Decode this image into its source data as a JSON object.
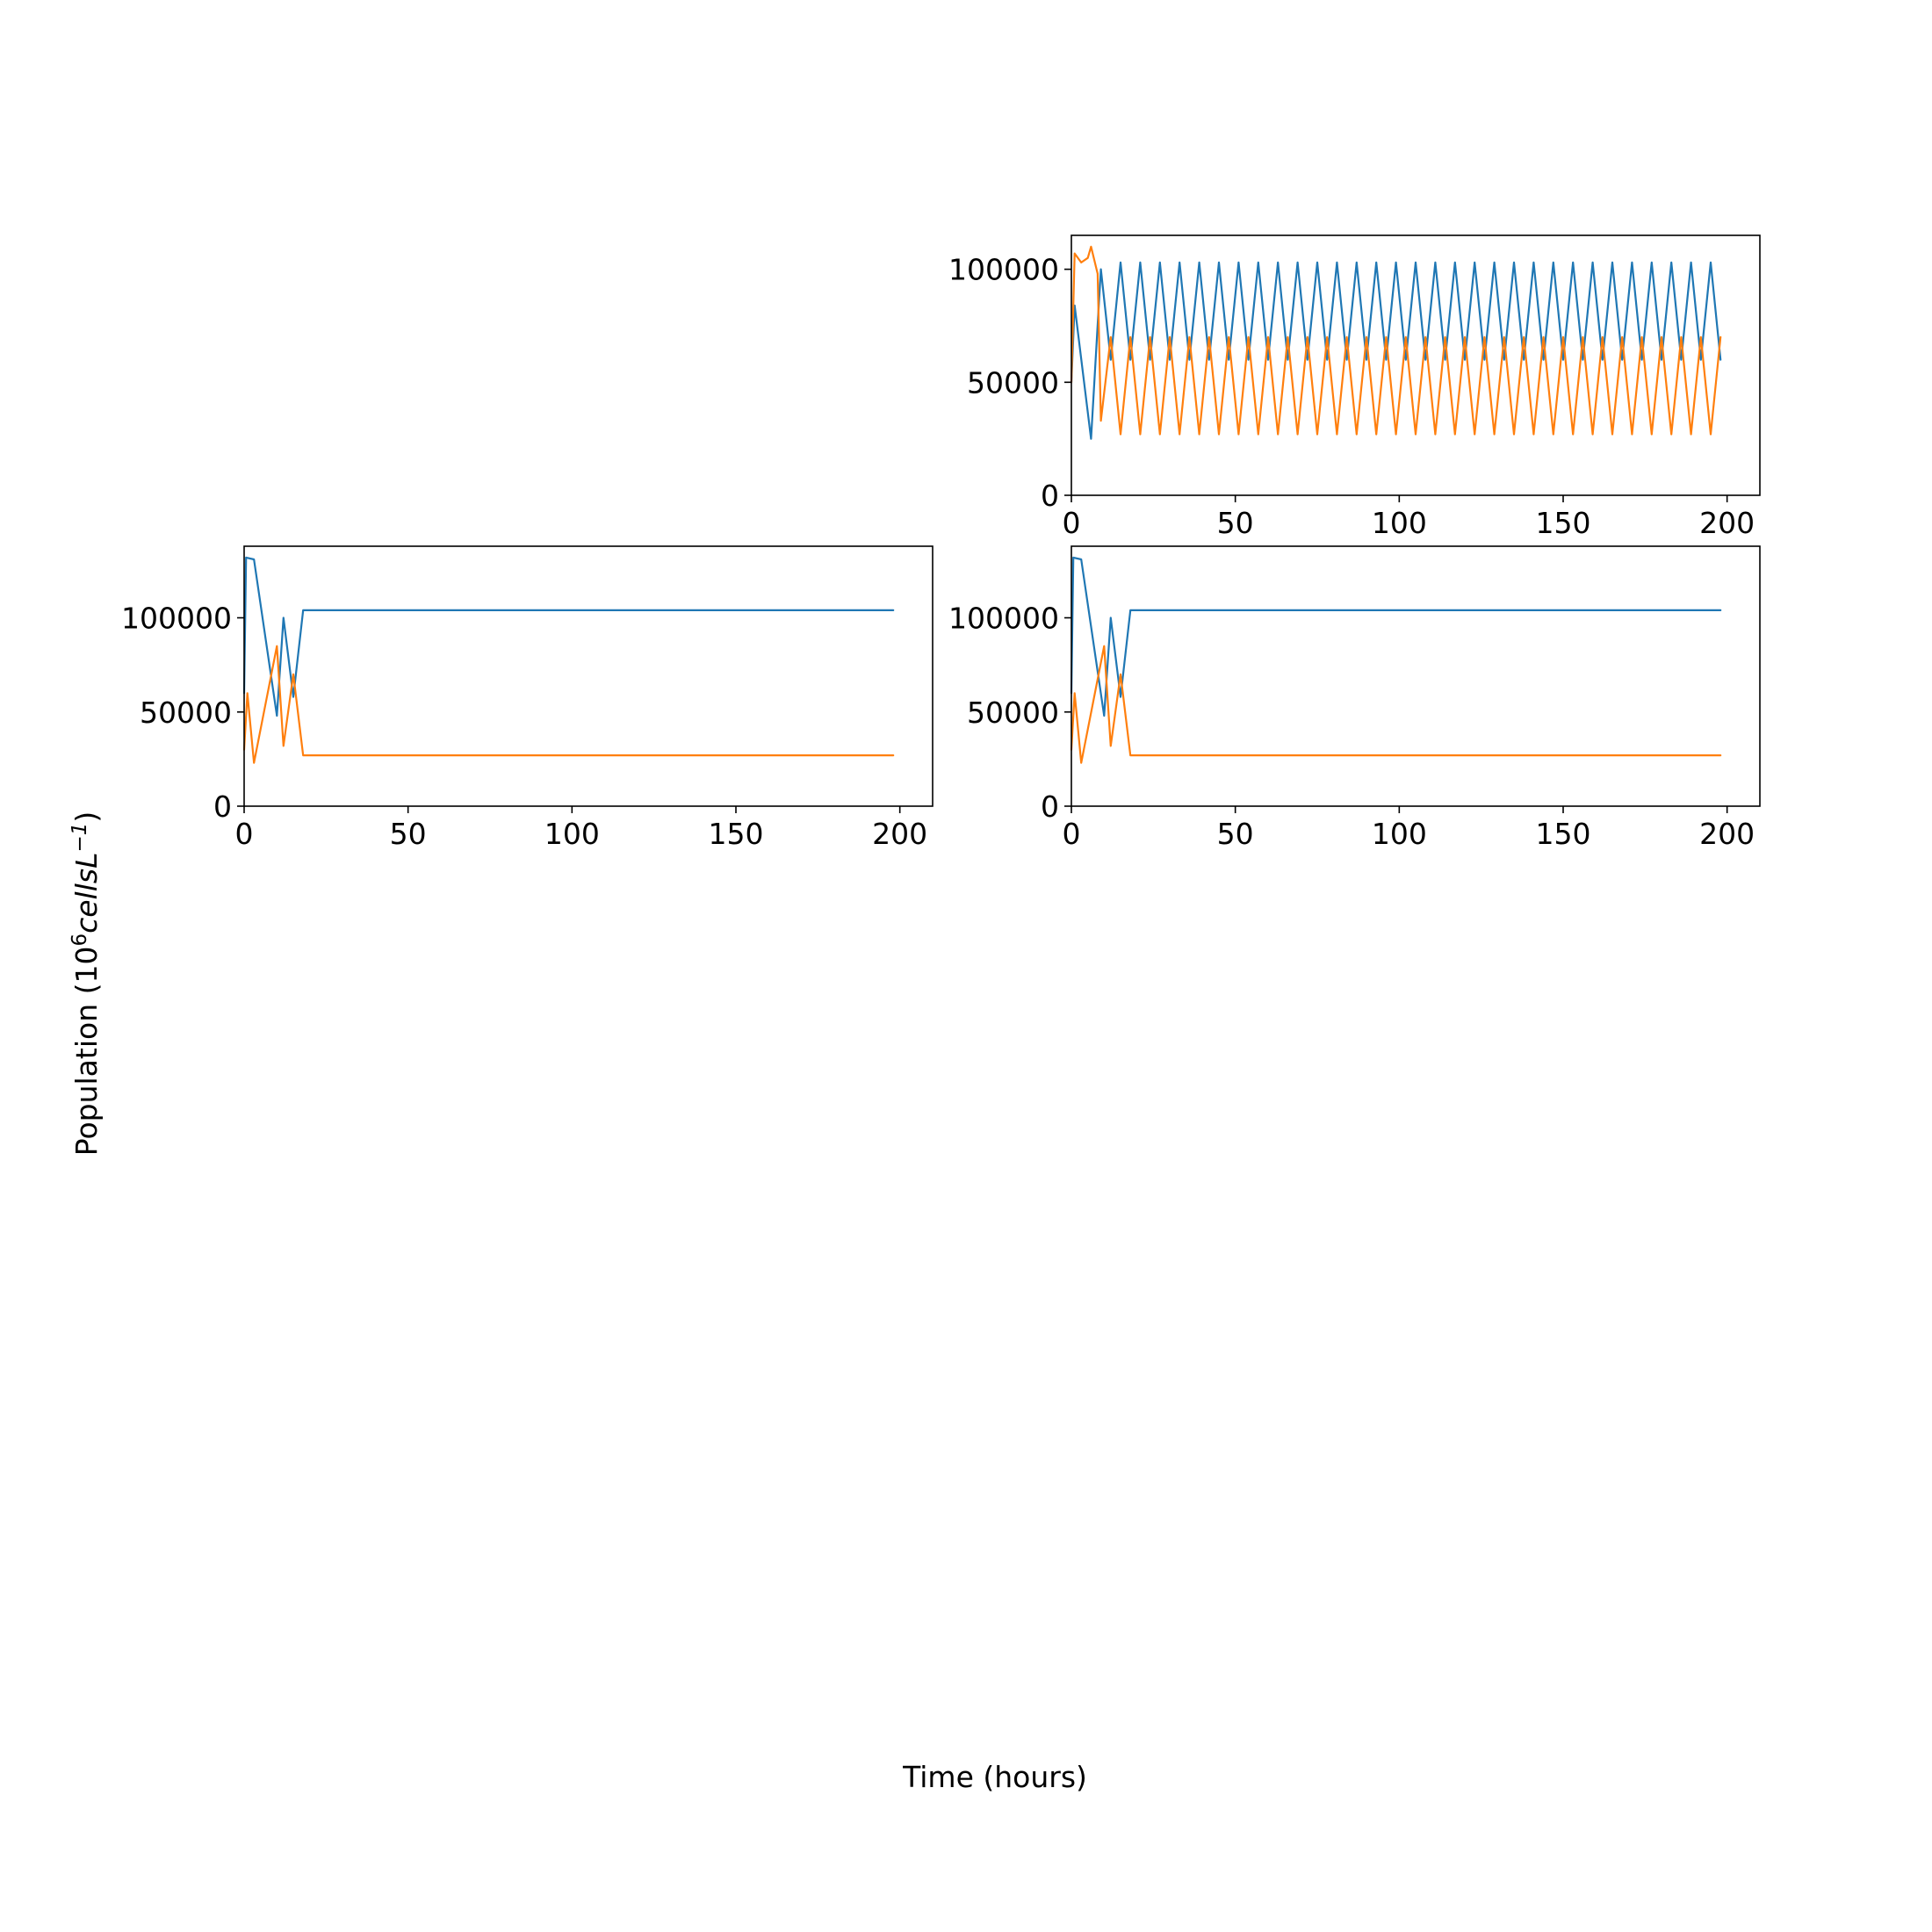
{
  "figure": {
    "xlabel": "Time (hours)",
    "ylabel_prefix": "Population (10",
    "ylabel_sup1": "6",
    "ylabel_unit": "cellsL",
    "ylabel_sup2": "−1",
    "ylabel_suffix": ")"
  },
  "colors": {
    "series1": "#1f77b4",
    "series2": "#ff7f0e"
  },
  "chart_data": [
    {
      "type": "line",
      "panel": "top-right",
      "xlim": [
        0,
        210
      ],
      "ylim": [
        0,
        115000
      ],
      "xticks": [
        0,
        50,
        100,
        150,
        200
      ],
      "xtick_labels": [
        "0",
        "50",
        "100",
        "150",
        "200"
      ],
      "yticks": [
        0,
        50000,
        100000
      ],
      "ytick_labels": [
        "0",
        "50000",
        "100000"
      ],
      "grid": false,
      "series": [
        {
          "color": "#1f77b4",
          "x": [
            0,
            1,
            6,
            9,
            12,
            15
          ],
          "y": [
            50000,
            84000,
            25000,
            100000,
            60000,
            103000
          ],
          "periodic": {
            "start": 15,
            "end": 200,
            "period": 6,
            "phases": [
              0,
              3
            ],
            "values": [
              103000,
              60000
            ]
          }
        },
        {
          "color": "#ff7f0e",
          "x": [
            0,
            1,
            3,
            5,
            6,
            8,
            9,
            12,
            15
          ],
          "y": [
            50000,
            107000,
            103000,
            105000,
            110000,
            98000,
            33000,
            70000,
            27000
          ],
          "periodic": {
            "start": 15,
            "end": 200,
            "period": 6,
            "phases": [
              0,
              3
            ],
            "values": [
              27000,
              70000
            ]
          }
        }
      ]
    },
    {
      "type": "line",
      "panel": "bottom-left",
      "xlim": [
        0,
        210
      ],
      "ylim": [
        0,
        138000
      ],
      "xticks": [
        0,
        50,
        100,
        150,
        200
      ],
      "xtick_labels": [
        "0",
        "50",
        "100",
        "150",
        "200"
      ],
      "yticks": [
        0,
        50000,
        100000
      ],
      "ytick_labels": [
        "0",
        "50000",
        "100000"
      ],
      "grid": false,
      "series": [
        {
          "color": "#1f77b4",
          "x": [
            0,
            0.6,
            3,
            10,
            12,
            15
          ],
          "y": [
            60000,
            132000,
            131000,
            48000,
            100000,
            58000
          ],
          "periodic": {
            "start": 15,
            "end": 200,
            "period": 6,
            "phases": [
              3,
              0
            ],
            "values": [
              104000,
              60000
            ]
          }
        },
        {
          "color": "#ff7f0e",
          "x": [
            0,
            1,
            3,
            10,
            12,
            15
          ],
          "y": [
            30000,
            60000,
            23000,
            85000,
            32000,
            70000
          ],
          "periodic": {
            "start": 15,
            "end": 200,
            "period": 6,
            "phases": [
              3,
              0
            ],
            "values": [
              27000,
              70000
            ]
          }
        }
      ]
    },
    {
      "type": "line",
      "panel": "bottom-right",
      "xlim": [
        0,
        210
      ],
      "ylim": [
        0,
        138000
      ],
      "xticks": [
        0,
        50,
        100,
        150,
        200
      ],
      "xtick_labels": [
        "0",
        "50",
        "100",
        "150",
        "200"
      ],
      "yticks": [
        0,
        50000,
        100000
      ],
      "ytick_labels": [
        "0",
        "50000",
        "100000"
      ],
      "grid": false,
      "series": [
        {
          "color": "#1f77b4",
          "x": [
            0,
            0.6,
            3,
            10,
            12,
            15
          ],
          "y": [
            60000,
            132000,
            131000,
            48000,
            100000,
            58000
          ],
          "periodic": {
            "start": 15,
            "end": 200,
            "period": 6,
            "phases": [
              3,
              0
            ],
            "values": [
              104000,
              60000
            ]
          }
        },
        {
          "color": "#ff7f0e",
          "x": [
            0,
            1,
            3,
            10,
            12,
            15
          ],
          "y": [
            30000,
            60000,
            23000,
            85000,
            32000,
            70000
          ],
          "periodic": {
            "start": 15,
            "end": 200,
            "period": 6,
            "phases": [
              3,
              0
            ],
            "values": [
              27000,
              70000
            ]
          }
        }
      ]
    }
  ]
}
